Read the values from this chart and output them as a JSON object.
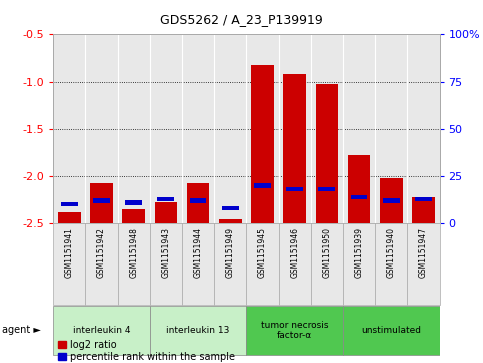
{
  "title": "GDS5262 / A_23_P139919",
  "samples": [
    "GSM1151941",
    "GSM1151942",
    "GSM1151948",
    "GSM1151943",
    "GSM1151944",
    "GSM1151949",
    "GSM1151945",
    "GSM1151946",
    "GSM1151950",
    "GSM1151939",
    "GSM1151940",
    "GSM1151947"
  ],
  "log2_ratio": [
    -2.38,
    -2.07,
    -2.35,
    -2.27,
    -2.07,
    -2.45,
    -0.82,
    -0.92,
    -1.02,
    -1.78,
    -2.02,
    -2.22
  ],
  "percentile_rank": [
    10,
    12,
    11,
    13,
    12,
    8,
    20,
    18,
    18,
    14,
    12,
    13
  ],
  "agents": [
    {
      "label": "interleukin 4",
      "samples": [
        0,
        1,
        2
      ],
      "color": "#c8f0c8"
    },
    {
      "label": "interleukin 13",
      "samples": [
        3,
        4,
        5
      ],
      "color": "#c8f0c8"
    },
    {
      "label": "tumor necrosis\nfactor-α",
      "samples": [
        6,
        7,
        8
      ],
      "color": "#50c850"
    },
    {
      "label": "unstimulated",
      "samples": [
        9,
        10,
        11
      ],
      "color": "#50c850"
    }
  ],
  "ylim_left": [
    -2.5,
    -0.5
  ],
  "ylim_right": [
    0,
    100
  ],
  "yticks_left": [
    -2.5,
    -2.0,
    -1.5,
    -1.0,
    -0.5
  ],
  "yticks_right": [
    0,
    25,
    50,
    75,
    100
  ],
  "bar_color": "#cc0000",
  "percentile_color": "#0000cc",
  "bg_color": "#e8e8e8",
  "grid_color": "#000000",
  "legend_red": "log2 ratio",
  "legend_blue": "percentile rank within the sample"
}
